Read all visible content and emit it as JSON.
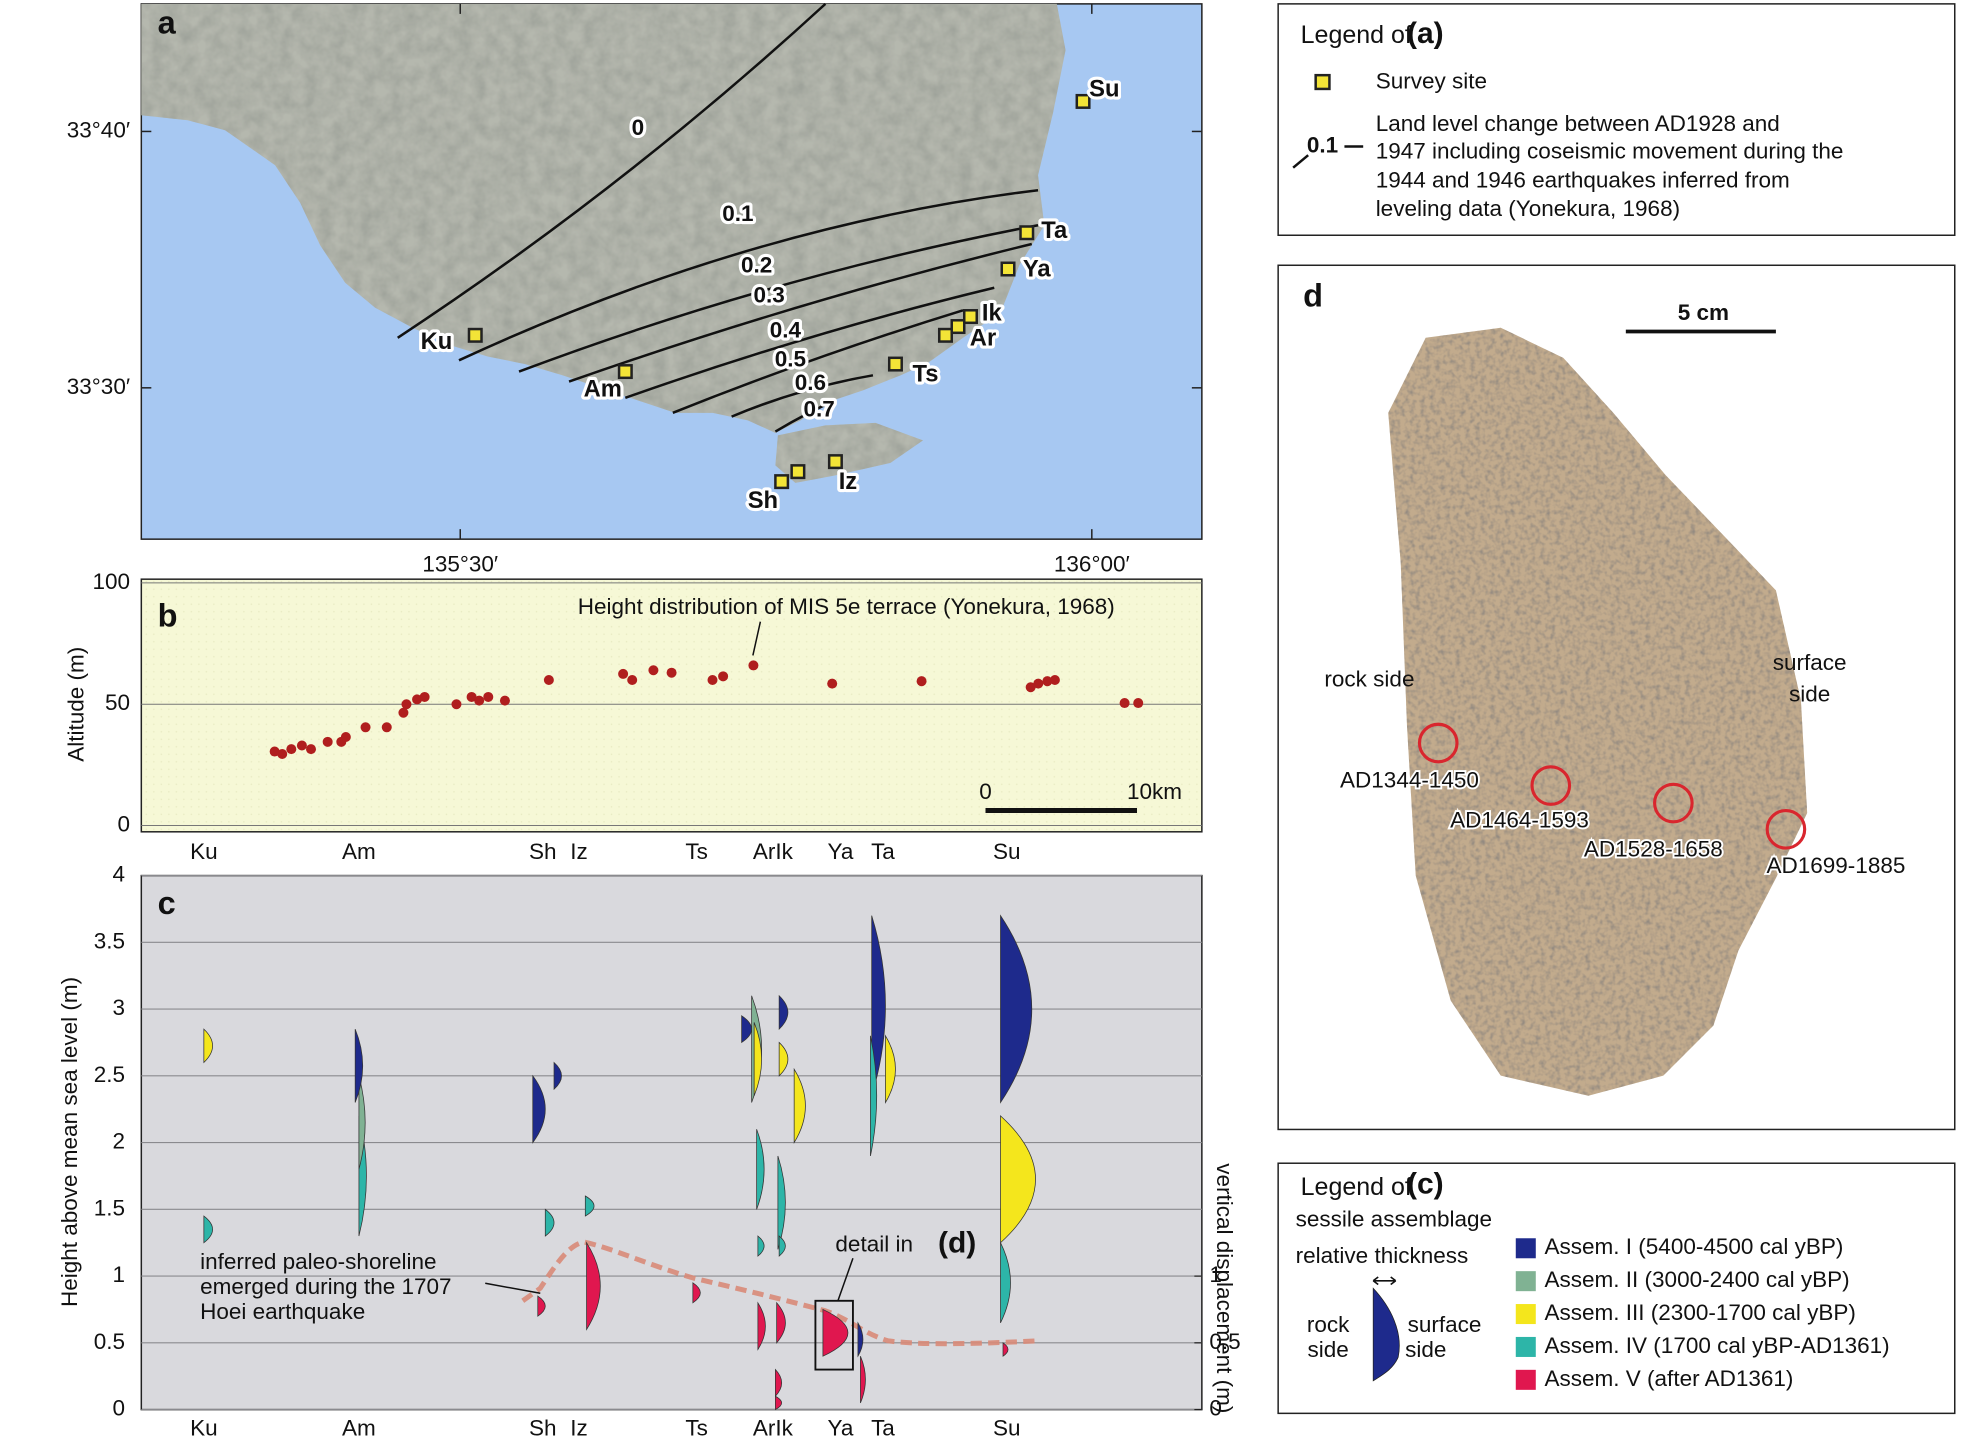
{
  "panel_a": {
    "label": "a",
    "lat_ticks": [
      "33°40′",
      "33°30′"
    ],
    "lon_ticks": [
      "135°30′",
      "136°00′"
    ],
    "contours": [
      "0",
      "0.1",
      "0.2",
      "0.3",
      "0.4",
      "0.5",
      "0.6",
      "0.7"
    ],
    "sites": [
      "Su",
      "Ta",
      "Ya",
      "Ik",
      "Ar",
      "Ts",
      "Ku",
      "Am",
      "Sh",
      "Iz"
    ]
  },
  "legend_a": {
    "title": "Legend of",
    "title_ref": "(a)",
    "site": "Survey site",
    "contour_sample": "0.1",
    "contour_text": [
      "Land level change between AD1928 and",
      "1947 including coseismic movement during the",
      "1944 and 1946 earthquakes inferred from",
      "leveling data (Yonekura, 1968)"
    ]
  },
  "chart_data": [
    {
      "type": "scatter",
      "label": "b",
      "ylabel": "Altitude (m)",
      "annotation": "Height distribution of MIS 5e terrace (Yonekura, 1968)",
      "categories": [
        "Ku",
        "Am",
        "Sh",
        "Iz",
        "Ts",
        "ArIk",
        "Ya",
        "Ta",
        "Su"
      ],
      "x": [
        8.8,
        9.3,
        9.9,
        10.6,
        11.2,
        12.3,
        13.2,
        13.5,
        14.8,
        16.2,
        17.3,
        17.5,
        18.2,
        18.7,
        20.8,
        21.8,
        22.3,
        22.9,
        24.0,
        26.9,
        31.8,
        32.4,
        33.8,
        35.0,
        37.7,
        38.4,
        40.4,
        45.6,
        51.5,
        58.7,
        59.2,
        59.8,
        60.3,
        64.9,
        65.8
      ],
      "values": [
        30.5,
        29.5,
        31.5,
        33,
        31.5,
        34.5,
        34.5,
        36.5,
        40.5,
        40.5,
        46.5,
        50,
        52,
        53,
        50,
        53,
        51.5,
        53,
        51.5,
        60,
        62.5,
        60,
        64,
        63,
        60,
        61.5,
        66,
        58.5,
        59.5,
        57,
        58.5,
        59.5,
        60,
        50.5,
        50.5
      ],
      "color": "#b01e1e",
      "xlim": [
        0,
        70
      ],
      "ylim": [
        0,
        100
      ],
      "yticks": [
        0,
        50,
        100
      ],
      "scalebar": {
        "values": [
          0,
          10
        ],
        "labels": [
          "0",
          "10km"
        ]
      }
    },
    {
      "type": "lens",
      "label": "c",
      "ylabel": "Height above mean sea level (m)",
      "y2label": "vertical displacement (m)",
      "categories": [
        "Ku",
        "Am",
        "Sh",
        "Iz",
        "Ts",
        "ArIk",
        "Ya",
        "Ta",
        "Su"
      ],
      "ylim": [
        0,
        4
      ],
      "yticks": [
        0,
        0.5,
        1,
        1.5,
        2,
        2.5,
        3,
        3.5,
        4
      ],
      "y2lim": [
        0,
        4
      ],
      "y2ticks": [
        0,
        0.5,
        1
      ],
      "grid": true,
      "annotation": [
        "inferred paleo-shoreline",
        "emerged during the 1707",
        "Hoei earthquake"
      ],
      "detail": "detail in",
      "detail_ref": "(d)",
      "series": [
        {
          "name": "Assem. I (5400-4500 cal yBP)",
          "color": "#1e2a8c"
        },
        {
          "name": "Assem. II (3000-2400 cal yBP)",
          "color": "#80b293"
        },
        {
          "name": "Assem. III (2300-1700 cal yBP)",
          "color": "#f4e61c"
        },
        {
          "name": "Assem. IV (1700 cal yBP-AD1361)",
          "color": "#2db5a8"
        },
        {
          "name": "Assem. V (after AD1361)",
          "color": "#e0174f"
        }
      ],
      "samples": [
        {
          "site": "Ku",
          "series": 2,
          "bottom": 2.6,
          "top": 2.85
        },
        {
          "site": "Ku",
          "series": 3,
          "bottom": 1.25,
          "top": 1.45
        },
        {
          "site": "Am",
          "series": 3,
          "bottom": 1.3,
          "top": 2.2
        },
        {
          "site": "Am",
          "series": 1,
          "bottom": 1.8,
          "top": 2.5
        },
        {
          "site": "Am",
          "series": 0,
          "bottom": 2.3,
          "top": 2.85
        },
        {
          "site": "Sh",
          "series": 0,
          "bottom": 2.0,
          "top": 2.5
        },
        {
          "site": "Sh",
          "series": 3,
          "bottom": 1.3,
          "top": 1.5
        },
        {
          "site": "Sh",
          "series": 4,
          "bottom": 0.7,
          "top": 0.85
        },
        {
          "site": "Iz",
          "series": 0,
          "bottom": 2.4,
          "top": 2.6
        },
        {
          "site": "Iz",
          "series": 3,
          "bottom": 1.45,
          "top": 1.6
        },
        {
          "site": "Iz",
          "series": 4,
          "bottom": 0.6,
          "top": 1.25
        },
        {
          "site": "Ts",
          "series": 4,
          "bottom": 0.8,
          "top": 0.95
        },
        {
          "site": "ArIk",
          "series": 0,
          "bottom": 2.75,
          "top": 2.95
        },
        {
          "site": "ArIk",
          "series": 1,
          "bottom": 2.3,
          "top": 3.1
        },
        {
          "site": "ArIk",
          "series": 2,
          "bottom": 2.35,
          "top": 2.9
        },
        {
          "site": "ArIk",
          "series": 0,
          "bottom": 2.85,
          "top": 3.1
        },
        {
          "site": "ArIk",
          "series": 2,
          "bottom": 2.5,
          "top": 2.75
        },
        {
          "site": "ArIk",
          "series": 2,
          "bottom": 2.0,
          "top": 2.55
        },
        {
          "site": "ArIk",
          "series": 3,
          "bottom": 1.5,
          "top": 2.1
        },
        {
          "site": "ArIk",
          "series": 3,
          "bottom": 1.2,
          "top": 1.9
        },
        {
          "site": "ArIk",
          "series": 3,
          "bottom": 1.15,
          "top": 1.3
        },
        {
          "site": "ArIk",
          "series": 3,
          "bottom": 1.15,
          "top": 1.3
        },
        {
          "site": "ArIk",
          "series": 4,
          "bottom": 0.45,
          "top": 0.8
        },
        {
          "site": "ArIk",
          "series": 4,
          "bottom": 0.5,
          "top": 0.8
        },
        {
          "site": "ArIk",
          "series": 4,
          "bottom": 0.1,
          "top": 0.3
        },
        {
          "site": "ArIk",
          "series": 4,
          "bottom": 0.0,
          "top": 0.1
        },
        {
          "site": "Ya",
          "series": 4,
          "bottom": 0.4,
          "top": 0.75
        },
        {
          "site": "Ya",
          "series": 0,
          "bottom": 0.4,
          "top": 0.65
        },
        {
          "site": "Ya",
          "series": 4,
          "bottom": 0.05,
          "top": 0.4
        },
        {
          "site": "Ta",
          "series": 0,
          "bottom": 2.35,
          "top": 3.7
        },
        {
          "site": "Ta",
          "series": 3,
          "bottom": 1.9,
          "top": 2.8
        },
        {
          "site": "Ta",
          "series": 2,
          "bottom": 2.3,
          "top": 2.8
        },
        {
          "site": "Su",
          "series": 0,
          "bottom": 2.3,
          "top": 3.7
        },
        {
          "site": "Su",
          "series": 2,
          "bottom": 1.25,
          "top": 2.2
        },
        {
          "site": "Su",
          "series": 3,
          "bottom": 0.65,
          "top": 1.25
        },
        {
          "site": "Su",
          "series": 4,
          "bottom": 0.4,
          "top": 0.5
        }
      ]
    }
  ],
  "panel_d": {
    "label": "d",
    "scale": "5 cm",
    "rock_side": "rock side",
    "surface_side": [
      "surface",
      "side"
    ],
    "ages": [
      "AD1344-1450",
      "AD1464-1593",
      "AD1528-1658",
      "AD1699-1885"
    ]
  },
  "legend_c": {
    "title": "Legend of",
    "title_ref": "(c)",
    "subtitle": "sessile assemblage",
    "thickness": "relative thickness",
    "rock_side": [
      "rock",
      "side"
    ],
    "surface_side": [
      "surface",
      "side"
    ]
  }
}
